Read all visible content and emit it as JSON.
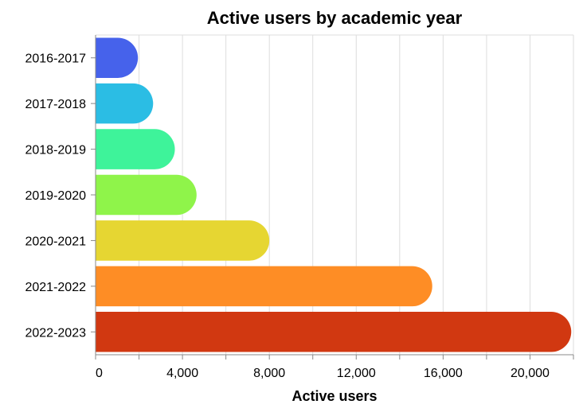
{
  "chart_data": {
    "type": "bar",
    "orientation": "horizontal",
    "title": "Active users by academic year",
    "xlabel": "Active users",
    "ylabel": "",
    "xlim": [
      0,
      22000
    ],
    "x_ticks": [
      0,
      4000,
      8000,
      12000,
      16000,
      20000
    ],
    "x_tick_labels": [
      "0",
      "4,000",
      "8,000",
      "12,000",
      "16,000",
      "20,000"
    ],
    "grid": true,
    "categories": [
      "2016-2017",
      "2017-2018",
      "2018-2019",
      "2019-2020",
      "2020-2021",
      "2021-2022",
      "2022-2023"
    ],
    "values": [
      1950,
      2650,
      3650,
      4650,
      8000,
      15500,
      21900
    ],
    "colors": [
      "#4662eb",
      "#2bbde4",
      "#3ef39a",
      "#8ff44a",
      "#e6d632",
      "#fe8d25",
      "#d13811"
    ]
  }
}
